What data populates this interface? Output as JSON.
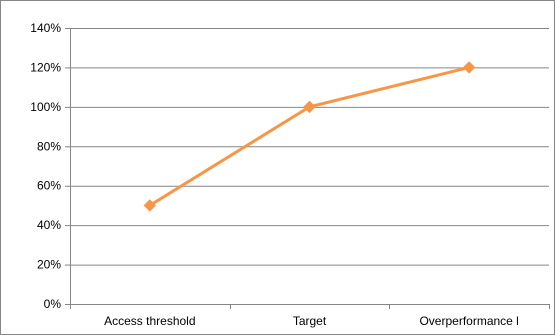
{
  "chart_data": {
    "type": "line",
    "title": "",
    "xlabel": "",
    "ylabel": "",
    "categories": [
      "Access threshold",
      "Target",
      "Overperformance l"
    ],
    "series": [
      {
        "values": [
          50,
          100,
          120
        ]
      }
    ],
    "ylim": [
      0,
      140
    ],
    "yticks": [
      "0%",
      "20%",
      "40%",
      "60%",
      "80%",
      "100%",
      "120%",
      "140%"
    ],
    "ytick_values": [
      0,
      20,
      40,
      60,
      80,
      100,
      120,
      140
    ],
    "grid": true,
    "legend": "none",
    "colors": {
      "line": "#F79646",
      "grid": "#868686",
      "axis": "#868686"
    },
    "marker": "diamond-icon"
  }
}
